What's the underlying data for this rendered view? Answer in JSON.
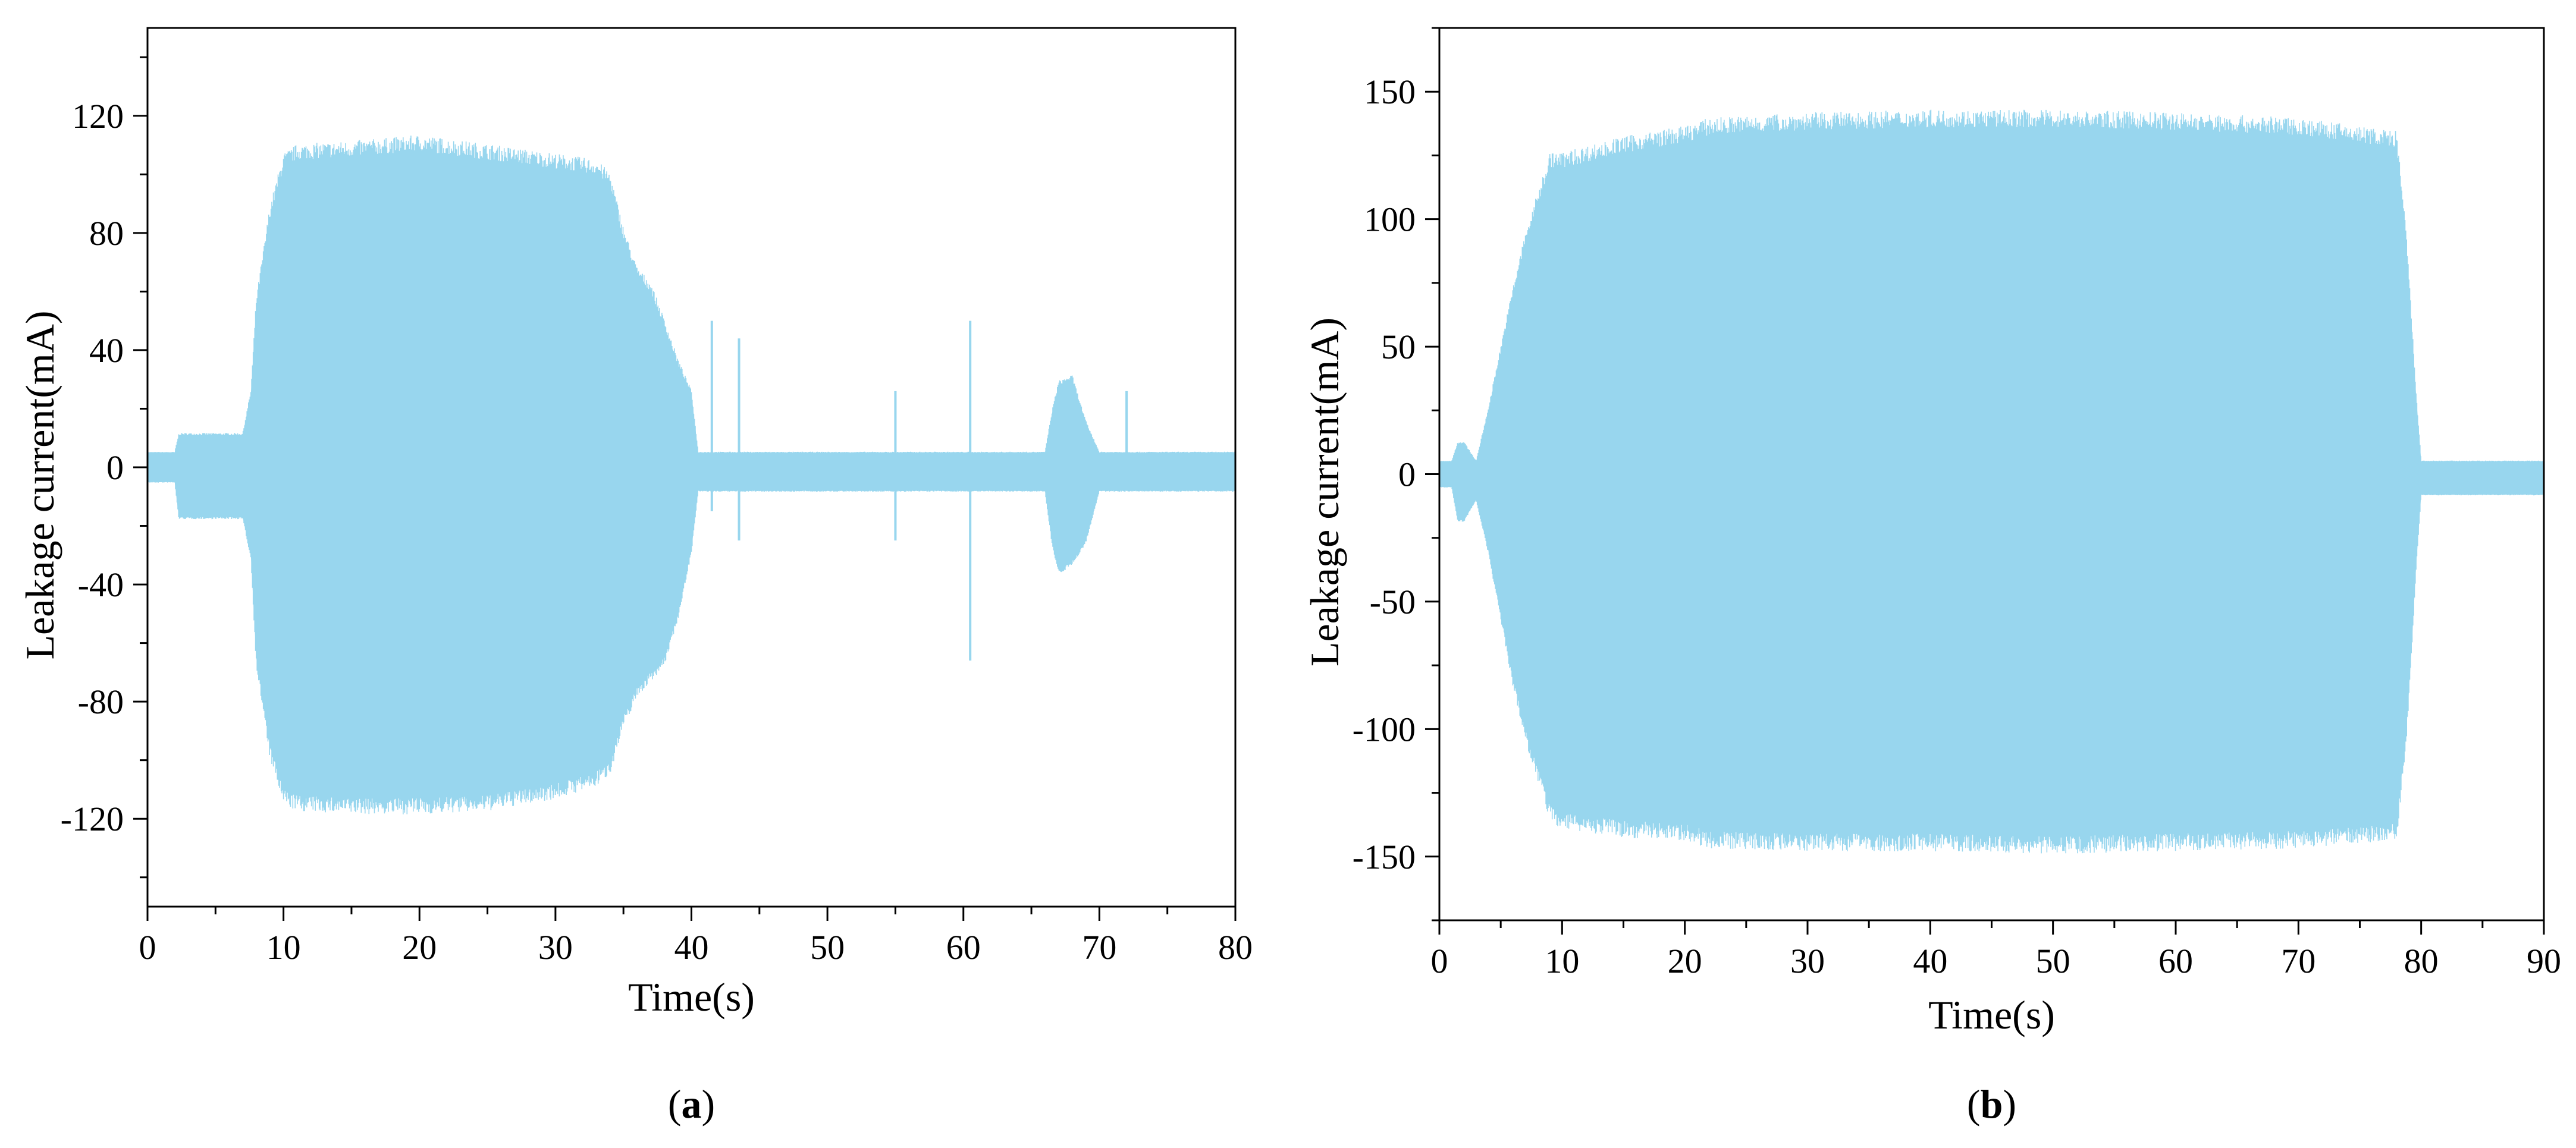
{
  "colors": {
    "signal": "#98d6ee",
    "axis": "#000000",
    "background": "#ffffff"
  },
  "chart_data": [
    {
      "type": "area",
      "panel_label": {
        "open": "(",
        "letter": "a",
        "close": ")"
      },
      "xlabel": "Time(s)",
      "ylabel": "Leakage current(mA)",
      "xlim": [
        0,
        80
      ],
      "ylim": [
        -150,
        150
      ],
      "xticks": [
        0,
        10,
        20,
        30,
        40,
        50,
        60,
        70,
        80
      ],
      "yticks": [
        -120,
        -80,
        -40,
        0,
        40,
        80,
        120
      ],
      "envelope": {
        "x": [
          0,
          2,
          2.3,
          7,
          7.6,
          8,
          9,
          10,
          11,
          15,
          20,
          25,
          30,
          33,
          34,
          35,
          36,
          37,
          38,
          39,
          40,
          40.5,
          42,
          50,
          60,
          66,
          66.5,
          67,
          68,
          69,
          70,
          71,
          80
        ],
        "upper": [
          5,
          5,
          11,
          11,
          25,
          55,
          85,
          102,
          105,
          106,
          108,
          105,
          102,
          100,
          96,
          78,
          65,
          60,
          48,
          35,
          25,
          5,
          5,
          5,
          5,
          5,
          18,
          28,
          30,
          15,
          5,
          5,
          5
        ],
        "lower": [
          -5,
          -5,
          -17,
          -17,
          -30,
          -65,
          -95,
          -110,
          -112,
          -113,
          -113,
          -112,
          -108,
          -104,
          -100,
          -85,
          -75,
          -70,
          -65,
          -50,
          -28,
          -8,
          -8,
          -8,
          -8,
          -8,
          -25,
          -35,
          -32,
          -25,
          -8,
          -8,
          -8
        ]
      },
      "spikes": [
        {
          "x": 41.5,
          "upper": 50,
          "lower": -15
        },
        {
          "x": 43.5,
          "upper": 44,
          "lower": -25
        },
        {
          "x": 55.0,
          "upper": 26,
          "lower": -25
        },
        {
          "x": 60.5,
          "upper": 50,
          "lower": -66
        },
        {
          "x": 72.0,
          "upper": 26,
          "lower": -8
        }
      ]
    },
    {
      "type": "area",
      "panel_label": {
        "open": "(",
        "letter": "b",
        "close": ")"
      },
      "xlabel": "Time(s)",
      "ylabel": "Leakage current(mA)",
      "xlim": [
        0,
        90
      ],
      "ylim": [
        -175,
        175
      ],
      "xticks": [
        0,
        10,
        20,
        30,
        40,
        50,
        60,
        70,
        80,
        90
      ],
      "yticks": [
        -150,
        -100,
        -50,
        0,
        50,
        100,
        150
      ],
      "envelope": {
        "x": [
          0,
          1,
          1.5,
          2,
          3,
          4,
          5,
          6,
          7,
          8,
          9,
          10,
          15,
          20,
          22,
          30,
          40,
          50,
          60,
          70,
          78,
          78.8,
          79.2,
          79.6,
          80,
          90
        ],
        "upper": [
          5,
          5,
          12,
          12,
          5,
          25,
          48,
          70,
          90,
          105,
          120,
          120,
          126,
          130,
          133,
          135,
          136,
          136,
          135,
          133,
          128,
          90,
          60,
          30,
          5,
          5
        ],
        "lower": [
          -5,
          -5,
          -18,
          -18,
          -10,
          -30,
          -55,
          -80,
          -100,
          -115,
          -130,
          -133,
          -136,
          -137,
          -140,
          -141,
          -141,
          -142,
          -141,
          -140,
          -137,
          -100,
          -70,
          -35,
          -8,
          -8
        ]
      },
      "spikes": []
    }
  ]
}
